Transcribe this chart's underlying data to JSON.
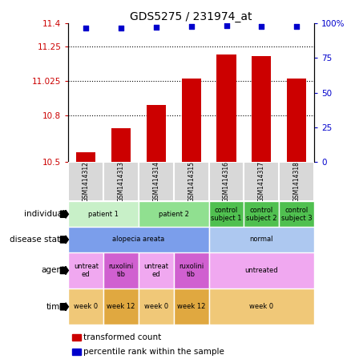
{
  "title": "GDS5275 / 231974_at",
  "samples": [
    "GSM1414312",
    "GSM1414313",
    "GSM1414314",
    "GSM1414315",
    "GSM1414316",
    "GSM1414317",
    "GSM1414318"
  ],
  "transformed_counts": [
    10.56,
    10.72,
    10.87,
    11.04,
    11.2,
    11.19,
    11.04
  ],
  "percentile_ranks": [
    97,
    97,
    97.5,
    98,
    98.5,
    98,
    98
  ],
  "ylim_left": [
    10.5,
    11.4
  ],
  "ylim_right": [
    0,
    100
  ],
  "yticks_left": [
    10.5,
    10.8,
    11.025,
    11.25,
    11.4
  ],
  "ytick_labels_left": [
    "10.5",
    "10.8",
    "11.025",
    "11.25",
    "11.4"
  ],
  "yticks_right": [
    0,
    25,
    50,
    75,
    100
  ],
  "ytick_labels_right": [
    "0",
    "25",
    "50",
    "75",
    "100%"
  ],
  "grid_lines": [
    10.8,
    11.025,
    11.25
  ],
  "bar_color": "#cc0000",
  "dot_color": "#0000cc",
  "individual_row": {
    "label": "individual",
    "cells": [
      {
        "text": "patient 1",
        "span": [
          0,
          2
        ],
        "color": "#c8f0c8"
      },
      {
        "text": "patient 2",
        "span": [
          2,
          4
        ],
        "color": "#90e090"
      },
      {
        "text": "control\nsubject 1",
        "span": [
          4,
          5
        ],
        "color": "#50c050"
      },
      {
        "text": "control\nsubject 2",
        "span": [
          5,
          6
        ],
        "color": "#50c050"
      },
      {
        "text": "control\nsubject 3",
        "span": [
          6,
          7
        ],
        "color": "#50c050"
      }
    ]
  },
  "disease_state_row": {
    "label": "disease state",
    "cells": [
      {
        "text": "alopecia areata",
        "span": [
          0,
          4
        ],
        "color": "#7b9eeb"
      },
      {
        "text": "normal",
        "span": [
          4,
          7
        ],
        "color": "#adc8f0"
      }
    ]
  },
  "agent_row": {
    "label": "agent",
    "cells": [
      {
        "text": "untreat\ned",
        "span": [
          0,
          1
        ],
        "color": "#f0a8f0"
      },
      {
        "text": "ruxolini\ntib",
        "span": [
          1,
          2
        ],
        "color": "#d060d0"
      },
      {
        "text": "untreat\ned",
        "span": [
          2,
          3
        ],
        "color": "#f0a8f0"
      },
      {
        "text": "ruxolini\ntib",
        "span": [
          3,
          4
        ],
        "color": "#d060d0"
      },
      {
        "text": "untreated",
        "span": [
          4,
          7
        ],
        "color": "#f0a8f0"
      }
    ]
  },
  "time_row": {
    "label": "time",
    "cells": [
      {
        "text": "week 0",
        "span": [
          0,
          1
        ],
        "color": "#f0c878"
      },
      {
        "text": "week 12",
        "span": [
          1,
          2
        ],
        "color": "#e0a840"
      },
      {
        "text": "week 0",
        "span": [
          2,
          3
        ],
        "color": "#f0c878"
      },
      {
        "text": "week 12",
        "span": [
          3,
          4
        ],
        "color": "#e0a840"
      },
      {
        "text": "week 0",
        "span": [
          4,
          7
        ],
        "color": "#f0c878"
      }
    ]
  },
  "legend_items": [
    {
      "color": "#cc0000",
      "label": "transformed count"
    },
    {
      "color": "#0000cc",
      "label": "percentile rank within the sample"
    }
  ],
  "fig_width": 4.38,
  "fig_height": 4.53,
  "dpi": 100
}
